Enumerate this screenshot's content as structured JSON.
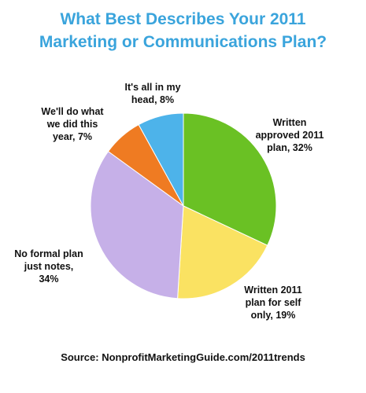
{
  "chart_data": {
    "type": "pie",
    "title_lines": [
      "What Best Describes Your 2011",
      "Marketing or Communications Plan?"
    ],
    "slices": [
      {
        "value": 32,
        "color": "#6ac124",
        "label_lines": [
          "Written",
          "approved 2011",
          "plan, 32%"
        ]
      },
      {
        "value": 19,
        "color": "#fae262",
        "label_lines": [
          "Written 2011",
          "plan for self",
          "only, 19%"
        ]
      },
      {
        "value": 34,
        "color": "#c6b0e8",
        "label_lines": [
          "No formal plan",
          "just notes,",
          "34%"
        ]
      },
      {
        "value": 7,
        "color": "#ef7b22",
        "label_lines": [
          "We'll do what",
          "we did this",
          "year, 7%"
        ]
      },
      {
        "value": 8,
        "color": "#4db3ea",
        "label_lines": [
          "It's all in my",
          "head, 8%"
        ]
      }
    ],
    "source": "Source: NonprofitMarketingGuide.com/2011trends"
  }
}
